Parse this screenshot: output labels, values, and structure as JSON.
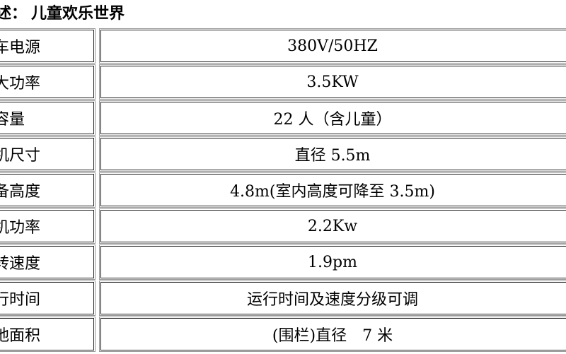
{
  "header": {
    "prefix": "述：",
    "title": "儿童欢乐世界"
  },
  "table": {
    "rows": [
      [
        "车电源",
        "380V/50HZ"
      ],
      [
        "大功率",
        "3.5KW"
      ],
      [
        "容量",
        "22 人（含儿童）"
      ],
      [
        "机尺寸",
        "直径 5.5m"
      ],
      [
        "备高度",
        "4.8m(室内高度可降至 3.5m)"
      ],
      [
        "机功率",
        "2.2Kw"
      ],
      [
        "转速度",
        "1.9pm"
      ],
      [
        "行时间",
        "运行时间及速度分级可调"
      ],
      [
        "地面积",
        "(围栏)直径　7 米"
      ]
    ]
  }
}
